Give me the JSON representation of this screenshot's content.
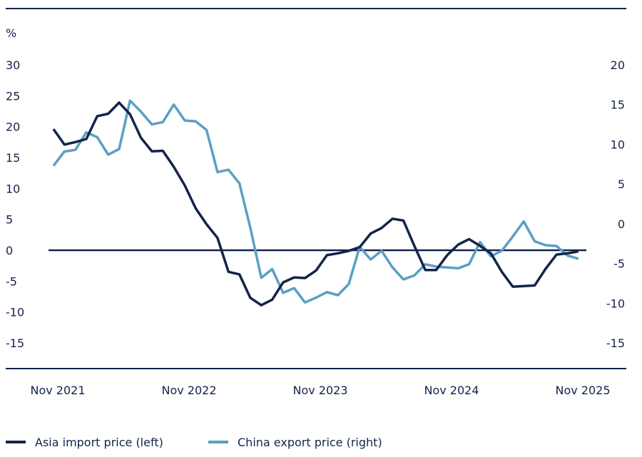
{
  "chart_data": {
    "type": "line",
    "ylabel_left": "%",
    "x": [
      "Nov 2021",
      "Dec 2021",
      "Jan 2022",
      "Feb 2022",
      "Mar 2022",
      "Apr 2022",
      "May 2022",
      "Jun 2022",
      "Jul 2022",
      "Aug 2022",
      "Sep 2022",
      "Oct 2022",
      "Nov 2022",
      "Dec 2022",
      "Jan 2023",
      "Feb 2023",
      "Mar 2023",
      "Apr 2023",
      "May 2023",
      "Jun 2023",
      "Jul 2023",
      "Aug 2023",
      "Sep 2023",
      "Oct 2023",
      "Nov 2023",
      "Dec 2023",
      "Jan 2024",
      "Feb 2024",
      "Mar 2024",
      "Apr 2024",
      "May 2024",
      "Jun 2024",
      "Jul 2024",
      "Aug 2024",
      "Sep 2024",
      "Oct 2024",
      "Nov 2024",
      "Dec 2024",
      "Jan 2025",
      "Feb 2025",
      "Mar 2025",
      "Apr 2025",
      "May 2025",
      "Jun 2025",
      "Jul 2025",
      "Aug 2025",
      "Sep 2025",
      "Oct 2025",
      "Nov 2025"
    ],
    "x_tick_labels": [
      "Nov 2021",
      "Nov 2022",
      "Nov 2023",
      "Nov 2024",
      "Nov 2025"
    ],
    "y_left": {
      "ticks": [
        30,
        25,
        20,
        15,
        10,
        5,
        0,
        -5,
        -10,
        -15
      ],
      "range": [
        -15,
        30
      ]
    },
    "y_right": {
      "ticks": [
        20,
        15,
        10,
        5,
        0,
        -5,
        -10,
        -15
      ],
      "range": [
        -15,
        20
      ]
    },
    "series": [
      {
        "name": "Asia import price (left)",
        "axis": "left",
        "color": "#13244a",
        "values": [
          19.6,
          17.1,
          17.5,
          18,
          21.7,
          22.1,
          23.9,
          22,
          18.2,
          16,
          16.1,
          13.5,
          10.5,
          6.8,
          4.2,
          2,
          -3.5,
          -3.9,
          -7.7,
          -8.9,
          -8,
          -5.2,
          -4.4,
          -4.5,
          -3.3,
          -0.8,
          -0.5,
          -0.1,
          0.5,
          2.7,
          3.6,
          5.1,
          4.8,
          0.7,
          -3.2,
          -3.2,
          -0.8,
          0.9,
          1.8,
          0.7,
          -0.5,
          -3.5,
          -5.9,
          -5.8,
          -5.7,
          -3,
          -0.7,
          -0.5,
          -0.2
        ]
      },
      {
        "name": "China export price (right)",
        "axis": "right",
        "color": "#5b9fc3",
        "values": [
          7.3,
          9.1,
          9.3,
          11.5,
          10.9,
          8.7,
          9.4,
          15.5,
          14.1,
          12.5,
          12.8,
          15,
          13,
          12.9,
          11.8,
          6.5,
          6.8,
          5.1,
          -0.5,
          -6.8,
          -5.7,
          -8.7,
          -8.1,
          -9.9,
          -9.3,
          -8.6,
          -9,
          -7.6,
          -2.9,
          -4.5,
          -3.4,
          -5.5,
          -7,
          -6.5,
          -5.1,
          -5.4,
          -5.5,
          -5.6,
          -5.1,
          -2.3,
          -4.1,
          -3.4,
          -1.6,
          0.3,
          -2.2,
          -2.7,
          -2.8,
          -4,
          -4.4
        ]
      }
    ],
    "grid": false,
    "legend": "bottom"
  }
}
